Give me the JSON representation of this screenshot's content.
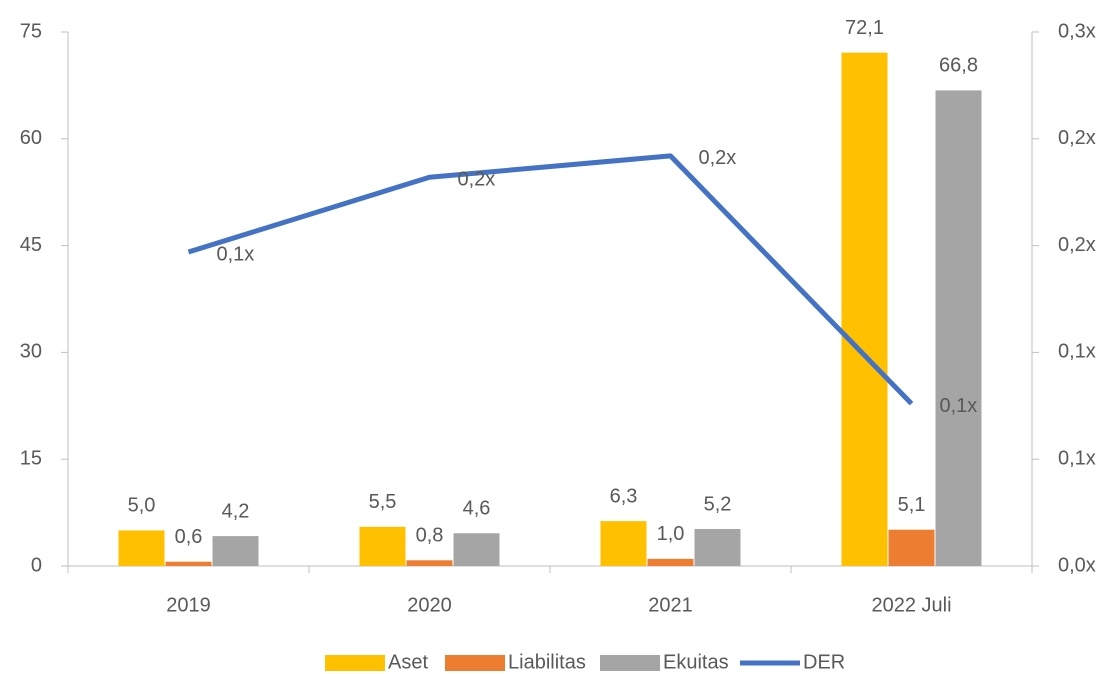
{
  "chart_data": {
    "type": "bar",
    "categories": [
      "2019",
      "2020",
      "2021",
      "2022 Juli"
    ],
    "series": [
      {
        "name": "Aset",
        "color": "#ffc000",
        "values": [
          5.0,
          5.5,
          6.3,
          72.1
        ],
        "value_labels": [
          "5,0",
          "5,5",
          "6,3",
          "72,1"
        ]
      },
      {
        "name": "Liabilitas",
        "color": "#ed7d31",
        "values": [
          0.6,
          0.8,
          1.0,
          5.1
        ],
        "value_labels": [
          "0,6",
          "0,8",
          "1,0",
          "5,1"
        ]
      },
      {
        "name": "Ekuitas",
        "color": "#a5a5a5",
        "values": [
          4.2,
          4.6,
          5.2,
          66.8
        ],
        "value_labels": [
          "4,2",
          "4,6",
          "5,2",
          "66,8"
        ]
      },
      {
        "name": "DER",
        "type": "line",
        "axis": "y2",
        "color": "#4472c4",
        "values": [
          0.147,
          0.182,
          0.192,
          0.076
        ],
        "value_labels": [
          "0,1x",
          "0,2x",
          "0,2x",
          "0,1x"
        ]
      }
    ],
    "ylim": [
      0,
      75
    ],
    "yticks": [
      0,
      15,
      30,
      45,
      60,
      75
    ],
    "y2lim": [
      0,
      0.25
    ],
    "y2ticks": [
      {
        "value": 0,
        "label": "0,0x"
      },
      {
        "value": 0.05,
        "label": "0,1x"
      },
      {
        "value": 0.1,
        "label": "0,1x"
      },
      {
        "value": 0.15,
        "label": "0,2x"
      },
      {
        "value": 0.2,
        "label": "0,2x"
      },
      {
        "value": 0.25,
        "label": "0,3x"
      }
    ],
    "legend": "bottom"
  }
}
